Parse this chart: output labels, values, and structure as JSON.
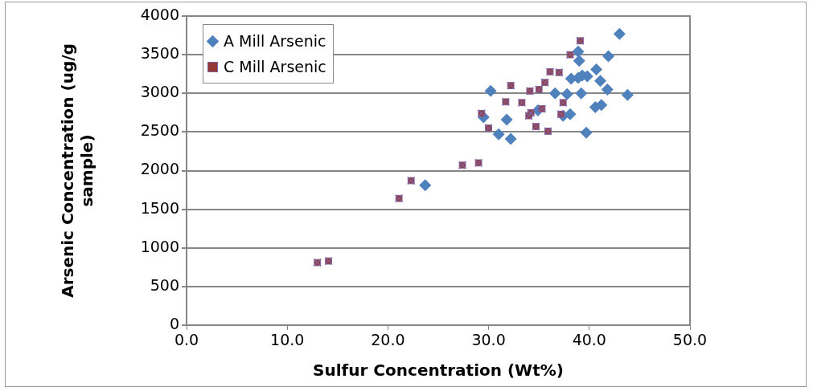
{
  "chart_data": {
    "type": "scatter",
    "xlabel": "Sulfur Concentration (Wt%)",
    "ylabel": "Arsenic Concentration (ug/g sample)",
    "xlim": [
      0,
      50
    ],
    "xticks": [
      {
        "value": 0,
        "label": "0.0"
      },
      {
        "value": 10,
        "label": "10.0"
      },
      {
        "value": 20,
        "label": "20.0"
      },
      {
        "value": 30,
        "label": "30.0"
      },
      {
        "value": 40,
        "label": "40.0"
      },
      {
        "value": 50,
        "label": "50.0"
      }
    ],
    "ylim": [
      0,
      4000
    ],
    "yticks": [
      0,
      500,
      1000,
      1500,
      2000,
      2500,
      3000,
      3500,
      4000
    ],
    "grid": "y",
    "legend": "top left",
    "series": [
      {
        "name": "A Mill Arsenic",
        "color": "#4f81bd",
        "marker": "diamond",
        "x": [
          30.2,
          29.5,
          31.8,
          31.0,
          32.2,
          23.7,
          34.9,
          36.6,
          37.8,
          37.4,
          38.1,
          38.2,
          38.9,
          39.3,
          39.8,
          39.2,
          39.7,
          39.0,
          38.9,
          40.7,
          41.1,
          41.8,
          41.9,
          43.0,
          43.8,
          40.6,
          41.2
        ],
        "values": [
          3030,
          2690,
          2660,
          2470,
          2410,
          1810,
          2780,
          3000,
          2990,
          2710,
          2730,
          3190,
          3200,
          3230,
          3220,
          3000,
          2490,
          3420,
          3540,
          3310,
          3160,
          3050,
          3480,
          3770,
          2980,
          2820,
          2850
        ]
      },
      {
        "name": "C Mill Arsenic",
        "color": "#953735",
        "marker": "square",
        "x": [
          13.0,
          14.1,
          21.1,
          22.3,
          27.4,
          29.0,
          29.3,
          30.0,
          31.7,
          32.2,
          33.3,
          34.1,
          34.2,
          34.0,
          35.0,
          35.6,
          35.3,
          34.7,
          35.9,
          36.1,
          37.0,
          37.4,
          37.2,
          38.1,
          39.1
        ],
        "values": [
          810,
          830,
          1640,
          1870,
          2070,
          2100,
          2740,
          2550,
          2890,
          3100,
          2880,
          3030,
          2750,
          2710,
          3050,
          3140,
          2800,
          2570,
          2510,
          3280,
          3270,
          2880,
          2730,
          3500,
          3680
        ]
      }
    ]
  }
}
